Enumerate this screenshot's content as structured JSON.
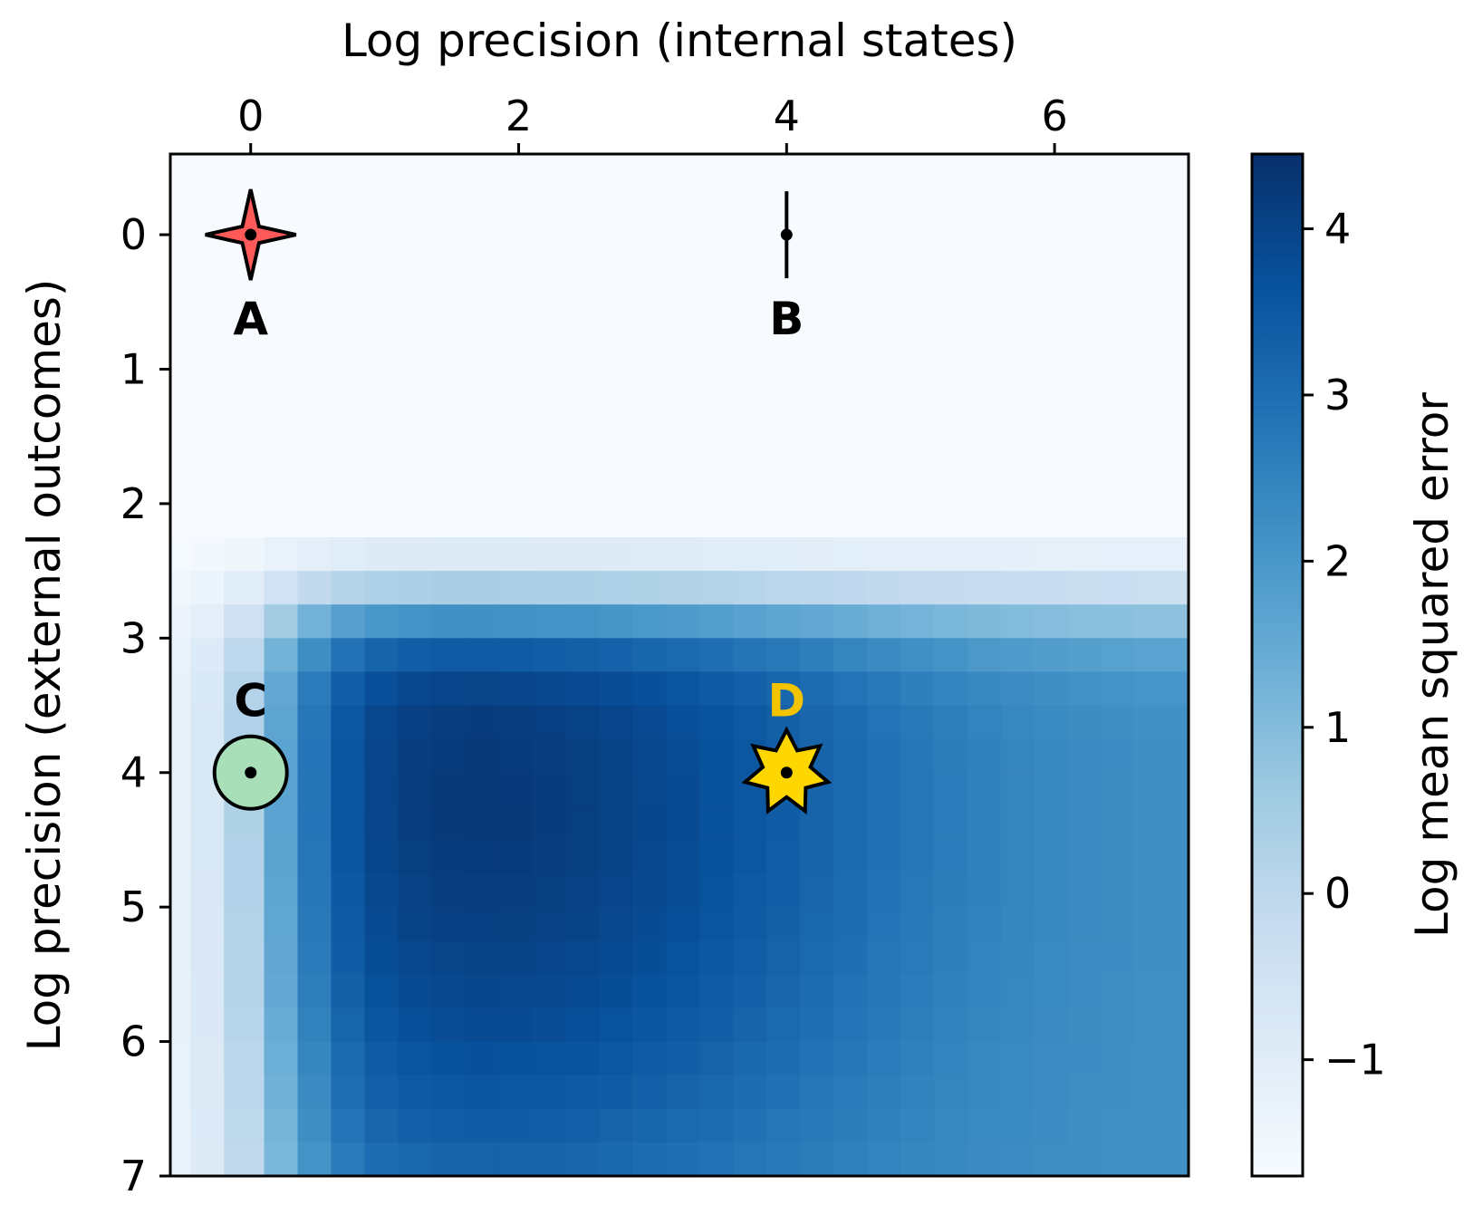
{
  "chart_data": {
    "type": "heatmap",
    "xlabel": "Log precision (internal states)",
    "ylabel": "Log precision (external outcomes)",
    "x_axis_position": "top",
    "y_axis_inverted": true,
    "xlim": [
      -0.6,
      7.0
    ],
    "ylim": [
      7.0,
      -0.6
    ],
    "x_ticks": [
      0,
      2,
      4,
      6
    ],
    "y_ticks": [
      0,
      1,
      2,
      3,
      4,
      5,
      6,
      7
    ],
    "x_tick_labels": [
      "0",
      "2",
      "4",
      "6"
    ],
    "y_tick_labels": [
      "0",
      "1",
      "2",
      "3",
      "4",
      "5",
      "6",
      "7"
    ],
    "grid_x": [
      -0.6,
      -0.45,
      -0.2,
      0.1,
      0.35,
      0.6,
      0.85,
      1.1,
      1.35,
      1.6,
      1.85,
      2.1,
      2.35,
      2.6,
      2.85,
      3.1,
      3.35,
      3.6,
      3.85,
      4.1,
      4.35,
      4.6,
      4.85,
      5.1,
      5.35,
      5.6,
      5.85,
      6.1,
      6.35,
      6.6,
      7.0
    ],
    "grid_y": [
      -0.6,
      2.25,
      2.5,
      2.75,
      3.0,
      3.25,
      3.5,
      3.75,
      4.0,
      4.25,
      4.5,
      4.75,
      5.0,
      5.25,
      5.5,
      5.75,
      6.0,
      6.25,
      6.5,
      6.75,
      7.0
    ],
    "colormap": "Blues",
    "colorbar": {
      "label": "Log mean squared error",
      "range": [
        -1.7,
        4.45
      ],
      "ticks": [
        -1,
        0,
        1,
        2,
        3,
        4
      ],
      "tick_labels": [
        "−1",
        "0",
        "1",
        "2",
        "3",
        "4"
      ]
    },
    "markers": [
      {
        "label": "A",
        "x": 0,
        "y": 0,
        "shape": "star4",
        "color": "#ff5a5a",
        "label_color": "#000000",
        "label_position": "below"
      },
      {
        "label": "B",
        "x": 4,
        "y": 0,
        "shape": "diamond",
        "color": "#ee88f5",
        "label_color": "#000000",
        "label_position": "below"
      },
      {
        "label": "C",
        "x": 0,
        "y": 4,
        "shape": "circle",
        "color": "#a8dfb8",
        "label_color": "#000000",
        "label_position": "above"
      },
      {
        "label": "D",
        "x": 4,
        "y": 4,
        "shape": "star7",
        "color": "#ffd700",
        "label_color": "#f2c400",
        "label_position": "above"
      }
    ]
  }
}
